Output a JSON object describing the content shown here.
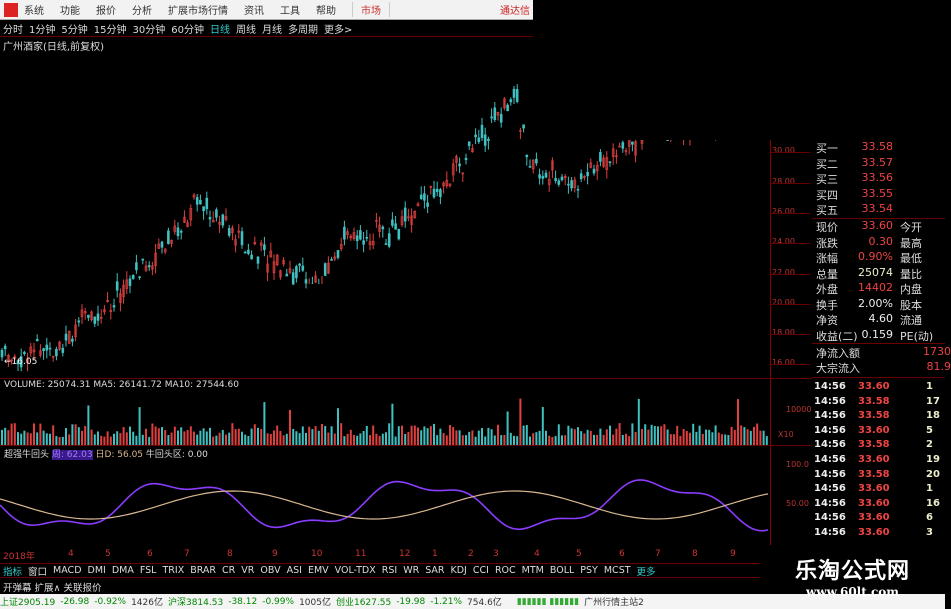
{
  "menu": {
    "items": [
      "系统",
      "功能",
      "报价",
      "分析",
      "扩展市场行情",
      "资讯",
      "工具",
      "帮助"
    ],
    "market": "市场",
    "right": "通达信"
  },
  "periods": [
    "分时",
    "1分钟",
    "5分钟",
    "15分钟",
    "30分钟",
    "60分钟",
    "日线",
    "周线",
    "月线",
    "多周期",
    "更多>"
  ],
  "active_period": "日线",
  "stock_title": "广州酒家(日线,前复权)",
  "price_axis": [
    "30.00",
    "28.00",
    "26.00",
    "24.00",
    "22.00",
    "20.00",
    "18.00",
    "16.00"
  ],
  "low_label": "←16.05",
  "volume": {
    "label": "VOLUME: 25074.31",
    "ma5": "MA5: 26141.72",
    "ma10": "MA10: 27544.60",
    "axis": [
      "10000",
      "X10"
    ]
  },
  "indicator": {
    "name": "超强牛回头",
    "week": "周: 62.03",
    "day": "日D: 56.05",
    "zone": "牛回头区: 0.00",
    "axis": [
      "100.0",
      "50.00"
    ]
  },
  "dates": [
    "2018年",
    "4",
    "5",
    "6",
    "7",
    "8",
    "9",
    "10",
    "11",
    "12",
    "1",
    "2",
    "3",
    "4",
    "5",
    "6",
    "7",
    "8",
    "9"
  ],
  "quote": {
    "bids": [
      {
        "l": "买一",
        "v": "33.58"
      },
      {
        "l": "买二",
        "v": "33.57"
      },
      {
        "l": "买三",
        "v": "33.56"
      },
      {
        "l": "买四",
        "v": "33.55"
      },
      {
        "l": "买五",
        "v": "33.54"
      }
    ],
    "rows": [
      {
        "l": "现价",
        "v": "33.60",
        "l2": "今开"
      },
      {
        "l": "涨跌",
        "v": "0.30",
        "l2": "最高"
      },
      {
        "l": "涨幅",
        "v": "0.90%",
        "l2": "最低"
      },
      {
        "l": "总量",
        "v": "25074",
        "l2": "量比"
      },
      {
        "l": "外盘",
        "v": "14402",
        "l2": "内盘"
      },
      {
        "l": "换手",
        "v": "2.00%",
        "l2": "股本"
      },
      {
        "l": "净资",
        "v": "4.60",
        "l2": "流通"
      },
      {
        "l": "收益(二)",
        "v": "0.159",
        "l2": "PE(动)"
      }
    ],
    "flow": [
      {
        "l": "净流入额",
        "v": "1730"
      },
      {
        "l": "大宗流入",
        "v": "81.9"
      }
    ]
  },
  "ticks": [
    [
      "14:56",
      "33.60",
      "1"
    ],
    [
      "14:56",
      "33.58",
      "17"
    ],
    [
      "14:56",
      "33.58",
      "18"
    ],
    [
      "14:56",
      "33.60",
      "5"
    ],
    [
      "14:56",
      "33.58",
      "2"
    ],
    [
      "14:56",
      "33.60",
      "19"
    ],
    [
      "14:56",
      "33.58",
      "20"
    ],
    [
      "14:56",
      "33.60",
      "1"
    ],
    [
      "14:56",
      "33.60",
      "16"
    ],
    [
      "14:56",
      "33.60",
      "6"
    ],
    [
      "14:56",
      "33.60",
      "3"
    ]
  ],
  "indicator_tabs": [
    "指标",
    "窗口",
    "MACD",
    "DMI",
    "DMA",
    "FSL",
    "TRIX",
    "BRAR",
    "CR",
    "VR",
    "OBV",
    "ASI",
    "EMV",
    "VOL-TDX",
    "RSI",
    "WR",
    "SAR",
    "KDJ",
    "CCI",
    "ROC",
    "MTM",
    "BOLL",
    "PSY",
    "MCST",
    "更多"
  ],
  "row2": [
    "开弹幕",
    "扩展∧",
    "关联报价"
  ],
  "status": {
    "sh": "上证2905.19",
    "sh_chg": "-26.98",
    "sh_pct": "-0.92%",
    "sh_amt": "1426亿",
    "sz": "沪深3814.53",
    "sz_chg": "-38.12",
    "sz_pct": "-0.99%",
    "sz_amt": "1005亿",
    "cy": "创业1627.55",
    "cy_chg": "-19.98",
    "cy_pct": "-1.21%",
    "cy_amt": "754.6亿",
    "server": "广州行情主站2"
  },
  "watermark": {
    "title": "乐淘公式网",
    "url": "www.60lt.com"
  },
  "colors": {
    "up": "#e04040",
    "down": "#40c0c0",
    "indicator_week": "#8a3cff",
    "indicator_day": "#d8b890",
    "axis": "#b33333"
  }
}
